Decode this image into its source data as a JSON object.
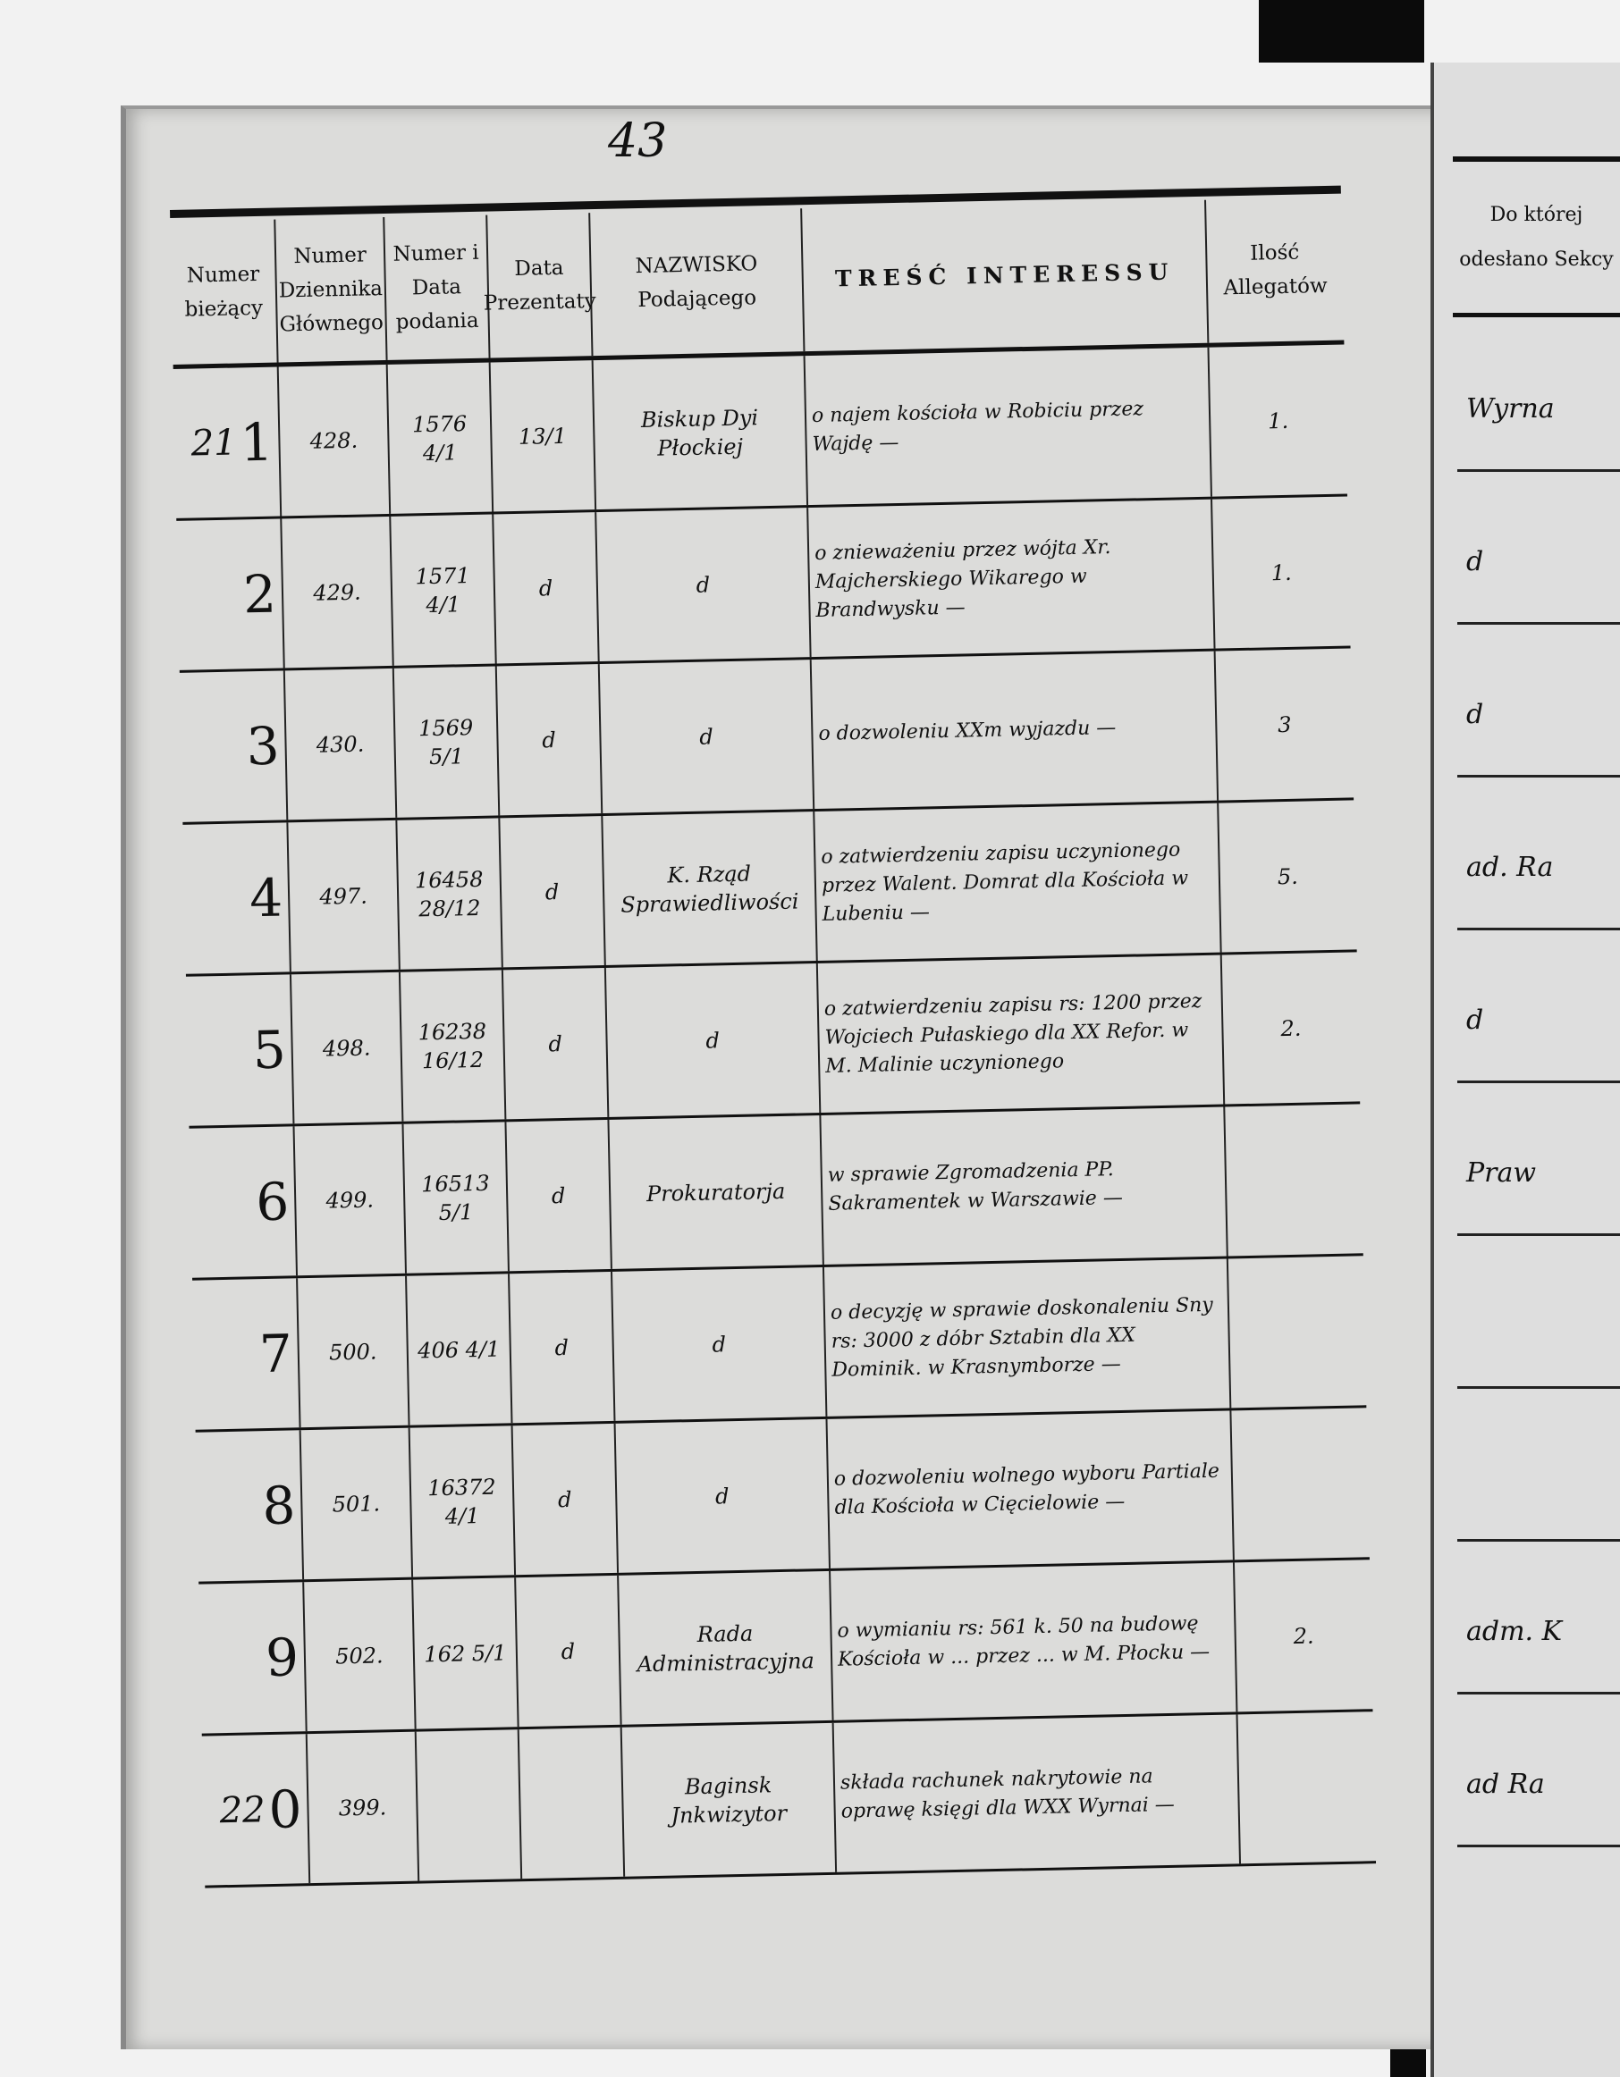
{
  "page_number": "43",
  "headers": {
    "numer_biezacy": "Numer bieżący",
    "numer_dziennika": "Numer Dziennika Głównego",
    "numer_data_podania": "Numer i Data podania",
    "data_prezentaty": "Data Prezentaty",
    "nazwisko": "NAZWISKO Podającego",
    "tresc": "TREŚĆ INTERESSU",
    "ilosc_allegatow": "Ilość Allegatów",
    "do_ktorej_sekcji": "Do której odesłano Sekcy"
  },
  "rows": [
    {
      "lp_hand": "21",
      "lp": "1",
      "dziennik": "428.",
      "numer_data": "1576 4/1",
      "prezentata": "13/1",
      "nazwisko": "Biskup Dyi Płockiej",
      "tresc": "o najem kościoła w Robiciu przez Wajdę —",
      "allegaty": "1.",
      "sekcja": "Wyrna"
    },
    {
      "lp_hand": "",
      "lp": "2",
      "dziennik": "429.",
      "numer_data": "1571 4/1",
      "prezentata": "d",
      "nazwisko": "d",
      "tresc": "o znieważeniu przez wójta Xr. Majcherskiego Wikarego w Brandwysku —",
      "allegaty": "1.",
      "sekcja": "d"
    },
    {
      "lp_hand": "",
      "lp": "3",
      "dziennik": "430.",
      "numer_data": "1569 5/1",
      "prezentata": "d",
      "nazwisko": "d",
      "tresc": "o dozwoleniu XXm wyjazdu —",
      "allegaty": "3",
      "sekcja": "d"
    },
    {
      "lp_hand": "",
      "lp": "4",
      "dziennik": "497.",
      "numer_data": "16458 28/12",
      "prezentata": "d",
      "nazwisko": "K. Rząd Sprawiedliwości",
      "tresc": "o zatwierdzeniu zapisu uczynionego przez Walent. Domrat dla Kościoła w Lubeniu —",
      "allegaty": "5.",
      "sekcja": "ad. Ra"
    },
    {
      "lp_hand": "",
      "lp": "5",
      "dziennik": "498.",
      "numer_data": "16238 16/12",
      "prezentata": "d",
      "nazwisko": "d",
      "tresc": "o zatwierdzeniu zapisu rs: 1200 przez Wojciech Pułaskiego dla XX Refor. w M. Malinie uczynionego",
      "allegaty": "2.",
      "sekcja": "d"
    },
    {
      "lp_hand": "",
      "lp": "6",
      "dziennik": "499.",
      "numer_data": "16513 5/1",
      "prezentata": "d",
      "nazwisko": "Prokuratorja",
      "tresc": "w sprawie Zgromadzenia PP. Sakramentek w Warszawie —",
      "allegaty": "",
      "sekcja": "Praw"
    },
    {
      "lp_hand": "",
      "lp": "7",
      "dziennik": "500.",
      "numer_data": "406 4/1",
      "prezentata": "d",
      "nazwisko": "d",
      "tresc": "o decyzję w sprawie doskonaleniu Sny rs: 3000 z dóbr Sztabin dla XX Dominik. w Krasnymborze —",
      "allegaty": "",
      "sekcja": ""
    },
    {
      "lp_hand": "",
      "lp": "8",
      "dziennik": "501.",
      "numer_data": "16372 4/1",
      "prezentata": "d",
      "nazwisko": "d",
      "tresc": "o dozwoleniu wolnego wyboru Partiale dla Kościoła w Cięcielowie —",
      "allegaty": "",
      "sekcja": ""
    },
    {
      "lp_hand": "",
      "lp": "9",
      "dziennik": "502.",
      "numer_data": "162 5/1",
      "prezentata": "d",
      "nazwisko": "Rada Administracyjna",
      "tresc": "o wymianiu rs: 561 k. 50 na budowę Kościoła w ... przez ... w M. Płocku —",
      "allegaty": "2.",
      "sekcja": "adm. K"
    },
    {
      "lp_hand": "22",
      "lp": "0",
      "dziennik": "399.",
      "numer_data": "",
      "prezentata": "",
      "nazwisko": "Baginsk Jnkwizytor",
      "tresc": "składa rachunek nakrytowie na oprawę księgi dla WXX Wyrnai —",
      "allegaty": "",
      "sekcja": "ad Ra"
    }
  ],
  "colors": {
    "paper": "#dcdcda",
    "ink": "#111111",
    "scan_border": "#0b0b0b"
  }
}
